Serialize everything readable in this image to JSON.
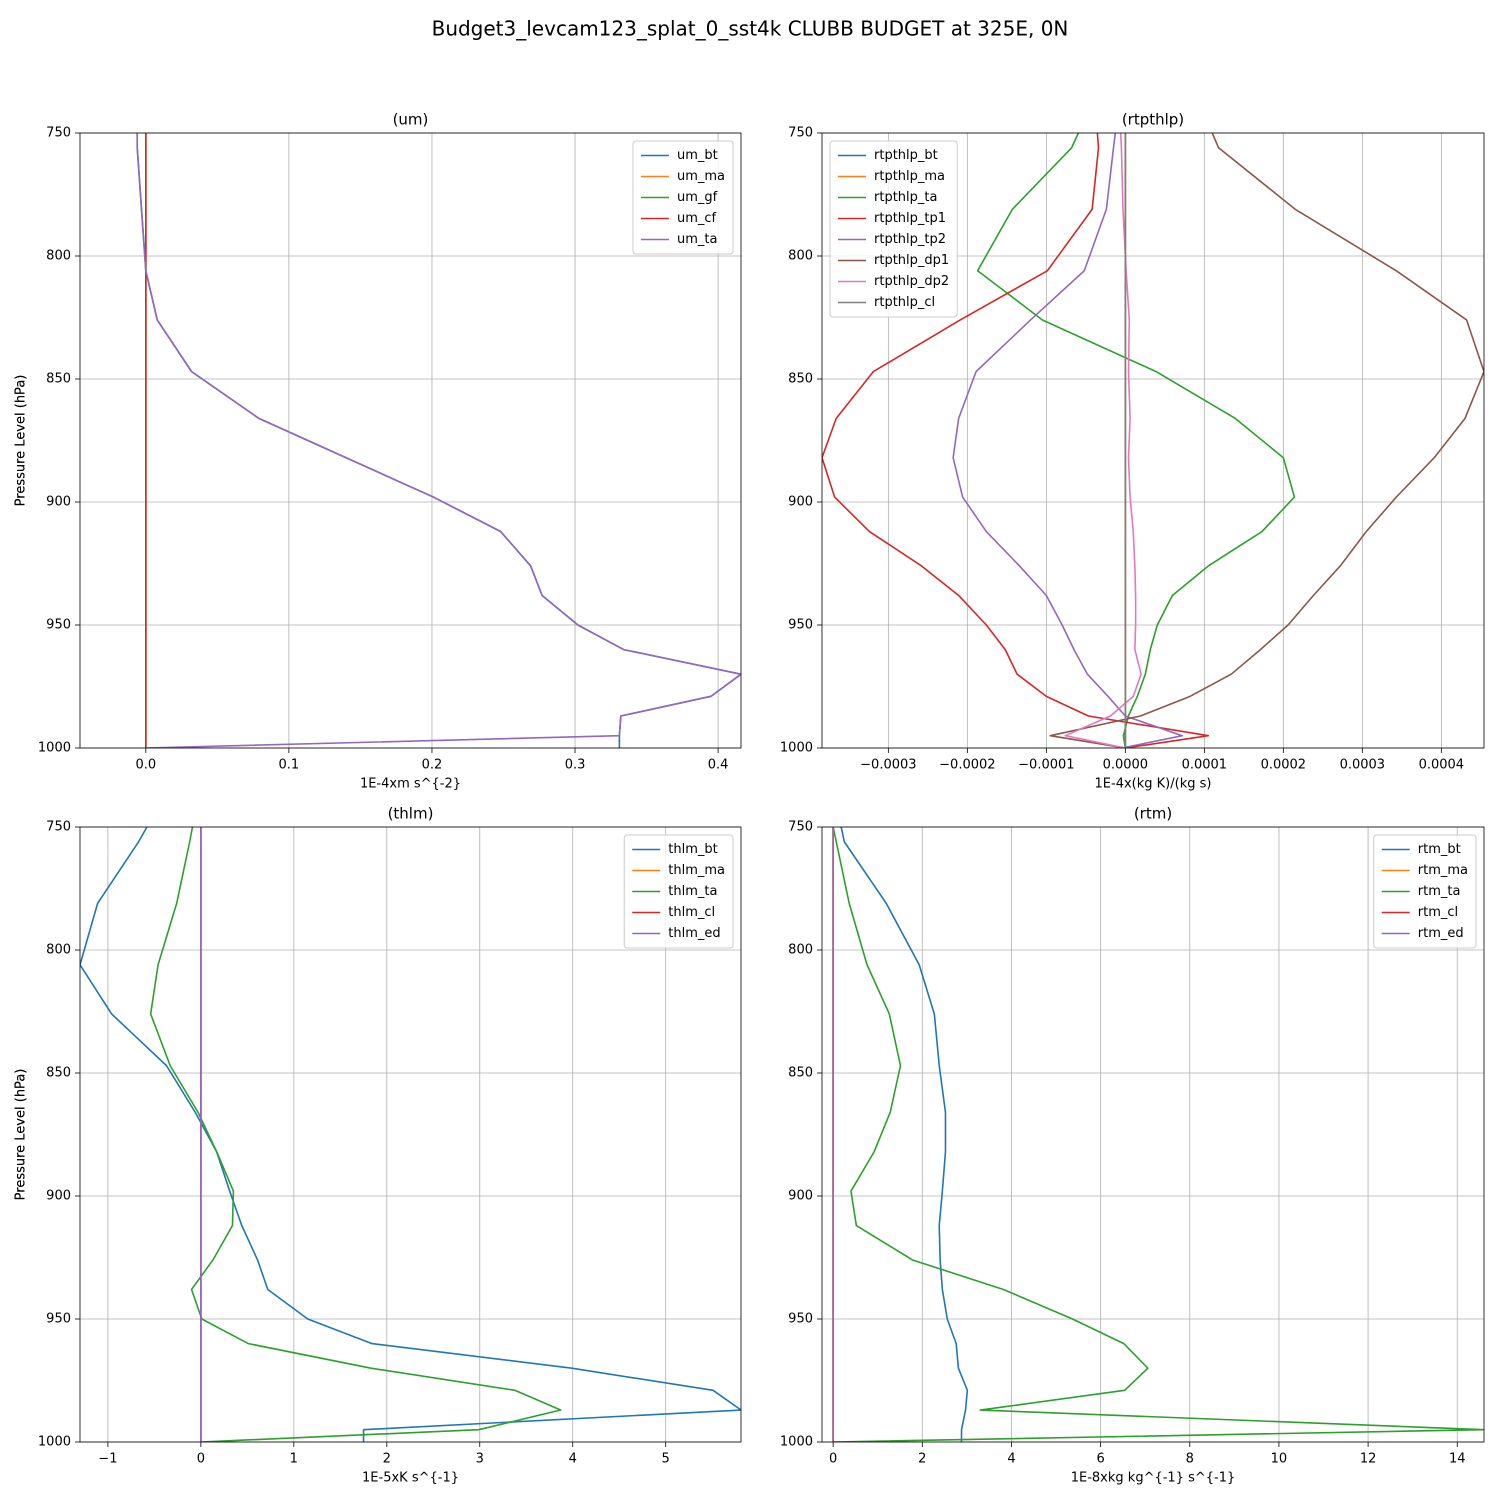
{
  "title": "Budget3_levcam123_splat_0_sst4k CLUBB BUDGET at 325E, 0N",
  "chart_data": [
    {
      "type": "line",
      "title": "(um)",
      "xlabel": "1E-4xm s^{-2}",
      "ylabel": "Pressure Level (hPa)",
      "y": [
        750,
        756,
        781,
        806,
        826,
        847,
        866,
        882,
        898,
        912,
        926,
        938,
        950,
        960,
        970,
        979,
        987,
        995,
        1000
      ],
      "xlim": [
        -0.046,
        0.416
      ],
      "xticks": [
        {
          "value": 0,
          "label": "0.0"
        },
        0.1,
        0.2,
        0.3,
        0.4
      ],
      "ylim": [
        1000,
        750
      ],
      "yticks": [
        750,
        800,
        850,
        900,
        950,
        1000
      ],
      "grid": true,
      "legend": "upper right",
      "series": [
        {
          "name": "um_bt",
          "color": "#1f77b4",
          "values": [
            -0.006,
            -0.006,
            -0.003,
            0,
            0.008,
            0.032,
            0.079,
            0.14,
            0.201,
            0.248,
            0.269,
            0.277,
            0.302,
            0.334,
            0.416,
            0.395,
            0.332,
            0.331,
            0.331
          ]
        },
        {
          "name": "um_ma",
          "color": "#ff7f0e",
          "values": [
            0,
            0,
            0,
            0,
            0,
            0,
            0,
            0,
            0,
            0,
            0,
            0,
            0,
            0,
            0,
            0,
            0,
            0,
            0
          ]
        },
        {
          "name": "um_gf",
          "color": "#2ca02c",
          "values": [
            0,
            0,
            0,
            0,
            0,
            0,
            0,
            0,
            0,
            0,
            0,
            0,
            0,
            0,
            0,
            0,
            0,
            0,
            0
          ]
        },
        {
          "name": "um_cf",
          "color": "#d62728",
          "values": [
            0,
            0,
            0,
            0,
            0,
            0,
            0,
            0,
            0,
            0,
            0,
            0,
            0,
            0,
            0,
            0,
            0,
            0,
            0
          ]
        },
        {
          "name": "um_ta",
          "color": "#9467bd",
          "values": [
            -0.006,
            -0.006,
            -0.003,
            0,
            0.008,
            0.032,
            0.079,
            0.14,
            0.201,
            0.248,
            0.269,
            0.277,
            0.302,
            0.334,
            0.416,
            0.395,
            0.332,
            0.331,
            0
          ]
        }
      ]
    },
    {
      "type": "line",
      "title": "(rtpthlp)",
      "xlabel": "1E-4x(kg K)/(kg s)",
      "ylabel": "Pressure Level (hPa)",
      "y": [
        750,
        756,
        781,
        806,
        826,
        847,
        866,
        882,
        898,
        912,
        926,
        938,
        950,
        960,
        970,
        979,
        987,
        995,
        1000
      ],
      "xlim": [
        -0.000384,
        0.000454
      ],
      "xticks": [
        {
          "value": -0.0003,
          "label": "−0.0003"
        },
        {
          "value": -0.0002,
          "label": "−0.0002"
        },
        {
          "value": -0.0001,
          "label": "−0.0001"
        },
        {
          "value": 0,
          "label": "0.0000"
        },
        0.0001,
        0.0002,
        0.0003,
        0.0004
      ],
      "ylim": [
        1000,
        750
      ],
      "yticks": [
        750,
        800,
        850,
        900,
        950,
        1000
      ],
      "grid": true,
      "legend": "upper left",
      "series": [
        {
          "name": "rtpthlp_bt",
          "color": "#1f77b4",
          "values": [
            0,
            0,
            0,
            0,
            0,
            0,
            0,
            0,
            0,
            0,
            0,
            0,
            0,
            0,
            0,
            0,
            0,
            0,
            0
          ]
        },
        {
          "name": "rtpthlp_ma",
          "color": "#ff7f0e",
          "values": [
            0,
            0,
            0,
            0,
            0,
            0,
            0,
            0,
            0,
            0,
            0,
            0,
            0,
            0,
            0,
            0,
            0,
            0,
            0
          ]
        },
        {
          "name": "rtpthlp_ta",
          "color": "#2ca02c",
          "values": [
            -5.95e-05,
            -6.8e-05,
            -0.000143,
            -0.000187,
            -0.000105,
            3.9e-05,
            0.000139,
            0.0002,
            0.000214,
            0.000173,
            0.000105,
            5.95e-05,
            4.05e-05,
            3.16e-05,
            2.53e-05,
            1.52e-05,
            3.8e-06,
            -2.5e-06,
            0
          ]
        },
        {
          "name": "rtpthlp_tp1",
          "color": "#d62728",
          "values": [
            -3.54e-05,
            -3.4e-05,
            -4.2e-05,
            -9.87e-05,
            -0.000209,
            -0.000319,
            -0.000366,
            -0.000384,
            -0.000368,
            -0.000324,
            -0.000258,
            -0.000211,
            -0.000176,
            -0.000152,
            -0.000137,
            -0.0001,
            -4.68e-05,
            0.000105,
            0
          ]
        },
        {
          "name": "rtpthlp_tp2",
          "color": "#9467bd",
          "values": [
            -1.27e-05,
            -1.5e-05,
            -2.4e-05,
            -5.2e-05,
            -0.00012,
            -0.000189,
            -0.000211,
            -0.000218,
            -0.000206,
            -0.000176,
            -0.000134,
            -0.0001,
            -8e-05,
            -6.5e-05,
            -4.8e-05,
            -2.2e-05,
            0,
            7.2e-05,
            -4e-06
          ]
        },
        {
          "name": "rtpthlp_dp1",
          "color": "#8c564b",
          "values": [
            0.00011,
            0.000118,
            0.000215,
            0.000343,
            0.000432,
            0.000454,
            0.00043,
            0.000391,
            0.000343,
            0.000305,
            0.000272,
            0.000238,
            0.000206,
            0.000171,
            0.000134,
            8.2e-05,
            1.9e-05,
            -9.5e-05,
            0
          ]
        },
        {
          "name": "rtpthlp_dp2",
          "color": "#e377c2",
          "values": [
            -6e-06,
            -5e-06,
            -3e-06,
            1e-06,
            5e-06,
            4e-06,
            6e-06,
            4e-06,
            6e-06,
            1e-05,
            1.2e-05,
            1.3e-05,
            1.3e-05,
            1.2e-05,
            2e-05,
            1e-05,
            -1.9e-05,
            -7.6e-05,
            0
          ]
        },
        {
          "name": "rtpthlp_cl",
          "color": "#7f7f7f",
          "values": [
            0,
            0,
            0,
            0,
            0,
            0,
            0,
            0,
            0,
            0,
            0,
            0,
            0,
            0,
            0,
            0,
            0,
            0,
            0
          ]
        }
      ]
    },
    {
      "type": "line",
      "title": "(thlm)",
      "xlabel": "1E-5xK s^{-1}",
      "ylabel": "Pressure Level (hPa)",
      "y": [
        750,
        756,
        781,
        806,
        826,
        847,
        866,
        882,
        898,
        912,
        926,
        938,
        950,
        960,
        970,
        979,
        987,
        995,
        1000
      ],
      "xlim": [
        -1.3,
        5.81
      ],
      "xticks": [
        {
          "value": -1,
          "label": "−1"
        },
        0,
        1,
        2,
        3,
        4,
        5
      ],
      "ylim": [
        1000,
        750
      ],
      "yticks": [
        750,
        800,
        850,
        900,
        950,
        1000
      ],
      "grid": true,
      "legend": "upper right",
      "series": [
        {
          "name": "thlm_bt",
          "color": "#1f77b4",
          "values": [
            -0.58,
            -0.67,
            -1.11,
            -1.3,
            -0.96,
            -0.37,
            -0.06,
            0.17,
            0.31,
            0.44,
            0.61,
            0.72,
            1.15,
            1.84,
            3.99,
            5.51,
            5.81,
            1.75,
            1.75
          ]
        },
        {
          "name": "thlm_ma",
          "color": "#ff7f0e",
          "values": [
            0,
            0,
            0,
            0,
            0,
            0,
            0,
            0,
            0,
            0,
            0,
            0,
            0,
            0,
            0,
            0,
            0,
            0,
            0
          ]
        },
        {
          "name": "thlm_ta",
          "color": "#2ca02c",
          "values": [
            -0.09,
            -0.12,
            -0.26,
            -0.46,
            -0.54,
            -0.33,
            -0.03,
            0.17,
            0.35,
            0.34,
            0.13,
            -0.1,
            0.01,
            0.51,
            1.83,
            3.38,
            3.87,
            2.99,
            0
          ]
        },
        {
          "name": "thlm_cl",
          "color": "#d62728",
          "values": [
            0,
            0,
            0,
            0,
            0,
            0,
            0,
            0,
            0,
            0,
            0,
            0,
            0,
            0,
            0,
            0,
            0,
            0,
            0
          ]
        },
        {
          "name": "thlm_ed",
          "color": "#9467bd",
          "values": [
            0,
            0,
            0,
            0,
            0,
            0,
            0,
            0,
            0,
            0,
            0,
            0,
            0,
            0,
            0,
            0,
            0,
            0,
            0
          ]
        }
      ]
    },
    {
      "type": "line",
      "title": "(rtm)",
      "xlabel": "1E-8xkg kg^{-1} s^{-1}",
      "ylabel": "Pressure Level (hPa)",
      "y": [
        750,
        756,
        781,
        806,
        826,
        847,
        866,
        882,
        898,
        912,
        926,
        938,
        950,
        960,
        970,
        979,
        987,
        995,
        1000
      ],
      "xlim": [
        -0.25,
        14.6
      ],
      "xticks": [
        0,
        2,
        4,
        6,
        8,
        10,
        12,
        14
      ],
      "ylim": [
        1000,
        750
      ],
      "yticks": [
        750,
        800,
        850,
        900,
        950,
        1000
      ],
      "grid": true,
      "legend": "upper right",
      "series": [
        {
          "name": "rtm_bt",
          "color": "#1f77b4",
          "values": [
            0.18,
            0.25,
            1.19,
            1.93,
            2.27,
            2.38,
            2.52,
            2.52,
            2.45,
            2.38,
            2.4,
            2.45,
            2.56,
            2.76,
            2.81,
            3.01,
            2.97,
            2.88,
            2.88
          ]
        },
        {
          "name": "rtm_ma",
          "color": "#ff7f0e",
          "values": [
            0,
            0,
            0,
            0,
            0,
            0,
            0,
            0,
            0,
            0,
            0,
            0,
            0,
            0,
            0,
            0,
            0,
            0,
            0
          ]
        },
        {
          "name": "rtm_ta",
          "color": "#2ca02c",
          "values": [
            0,
            0.07,
            0.36,
            0.76,
            1.26,
            1.51,
            1.28,
            0.92,
            0.4,
            0.52,
            1.78,
            3.82,
            5.37,
            6.52,
            7.06,
            6.54,
            3.3,
            14.6,
            0
          ]
        },
        {
          "name": "rtm_cl",
          "color": "#d62728",
          "values": [
            0,
            0,
            0,
            0,
            0,
            0,
            0,
            0,
            0,
            0,
            0,
            0,
            0,
            0,
            0,
            0,
            0,
            0,
            0
          ]
        },
        {
          "name": "rtm_ed",
          "color": "#9467bd",
          "values": [
            0,
            0,
            0,
            0,
            0,
            0,
            0,
            0,
            0,
            0,
            0,
            0,
            0,
            0,
            0,
            0,
            0,
            0,
            0
          ]
        }
      ]
    }
  ]
}
